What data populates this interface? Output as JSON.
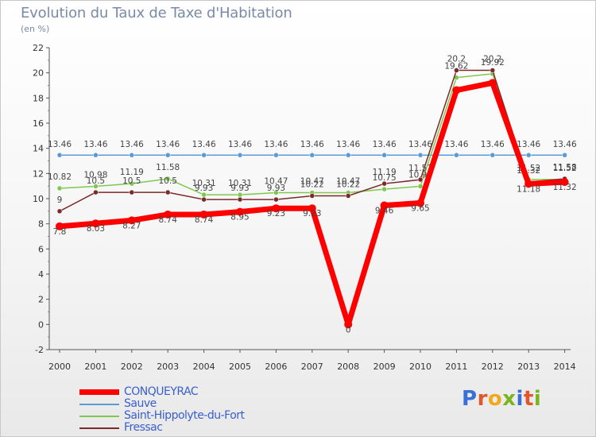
{
  "header": {
    "title": "Evolution du Taux de Taxe d'Habitation",
    "subtitle": "(en %)"
  },
  "logo": {
    "letters": [
      "P",
      "r",
      "o",
      "x",
      "i",
      "t",
      "i"
    ],
    "colors": [
      "#3a6fd8",
      "#e0562d",
      "#f2a81d",
      "#7ab51d",
      "#3a6fd8",
      "#e0562d",
      "#7ab51d"
    ]
  },
  "chart_data": {
    "type": "line",
    "title": "Evolution du Taux de Taxe d'Habitation",
    "ylabel": "(en %)",
    "xlabel": "",
    "x": [
      "2000",
      "2001",
      "2002",
      "2003",
      "2004",
      "2005",
      "2006",
      "2007",
      "2008",
      "2009",
      "2010",
      "2011",
      "2012",
      "2013",
      "2014"
    ],
    "ylim": [
      -2,
      22
    ],
    "yticks": [
      -2,
      0,
      2,
      4,
      6,
      8,
      10,
      12,
      14,
      16,
      18,
      20,
      22
    ],
    "grid": false,
    "legend_position": "bottom-left",
    "series": [
      {
        "name": "CONQUEYRAC",
        "color": "#ff0000",
        "values": [
          7.8,
          8.03,
          8.27,
          8.74,
          8.74,
          8.95,
          9.23,
          9.23,
          0,
          9.46,
          9.65,
          18.62,
          19.2,
          11.18,
          11.32
        ],
        "labels": [
          "7.8",
          "8.03",
          "8.27",
          "8.74",
          "8.74",
          "8.95",
          "9.23",
          "9.23",
          "0",
          "9.46",
          "9.65",
          "",
          "",
          "11.18",
          "11.32"
        ]
      },
      {
        "name": "Sauve",
        "color": "#5b9bd5",
        "values": [
          13.46,
          13.46,
          13.46,
          13.46,
          13.46,
          13.46,
          13.46,
          13.46,
          13.46,
          13.46,
          13.46,
          13.46,
          13.46,
          13.46,
          13.46
        ],
        "labels": [
          "13.46",
          "13.46",
          "13.46",
          "13.46",
          "13.46",
          "13.46",
          "13.46",
          "13.46",
          "13.46",
          "13.46",
          "13.46",
          "13.46",
          "13.46",
          "13.46",
          "13.46"
        ]
      },
      {
        "name": "Saint-Hippolyte-du-Fort",
        "color": "#7ec850",
        "values": [
          10.82,
          10.98,
          11.19,
          11.58,
          10.31,
          10.31,
          10.47,
          10.47,
          10.47,
          10.75,
          10.98,
          19.62,
          19.92,
          11.52,
          11.52
        ],
        "labels": [
          "10.82",
          "10.98",
          "11.19",
          "11.58",
          "10.31",
          "10.31",
          "10.47",
          "10.47",
          "10.47",
          "10.75",
          "10.98",
          "19.62",
          "19.92",
          "11.52",
          "11.52"
        ]
      },
      {
        "name": "Fressac",
        "color": "#7a2a2a",
        "values": [
          9,
          10.5,
          10.5,
          10.5,
          9.93,
          9.93,
          9.93,
          10.22,
          10.22,
          11.19,
          11.51,
          20.2,
          20.2,
          11.32,
          11.58
        ],
        "labels": [
          "9",
          "10.5",
          "10.5",
          "10.5",
          "9.93",
          "9.93",
          "9.93",
          "10.22",
          "10.22",
          "11.19",
          "11.51",
          "20.2",
          "20.2",
          "11.32",
          "11.58"
        ]
      }
    ]
  }
}
